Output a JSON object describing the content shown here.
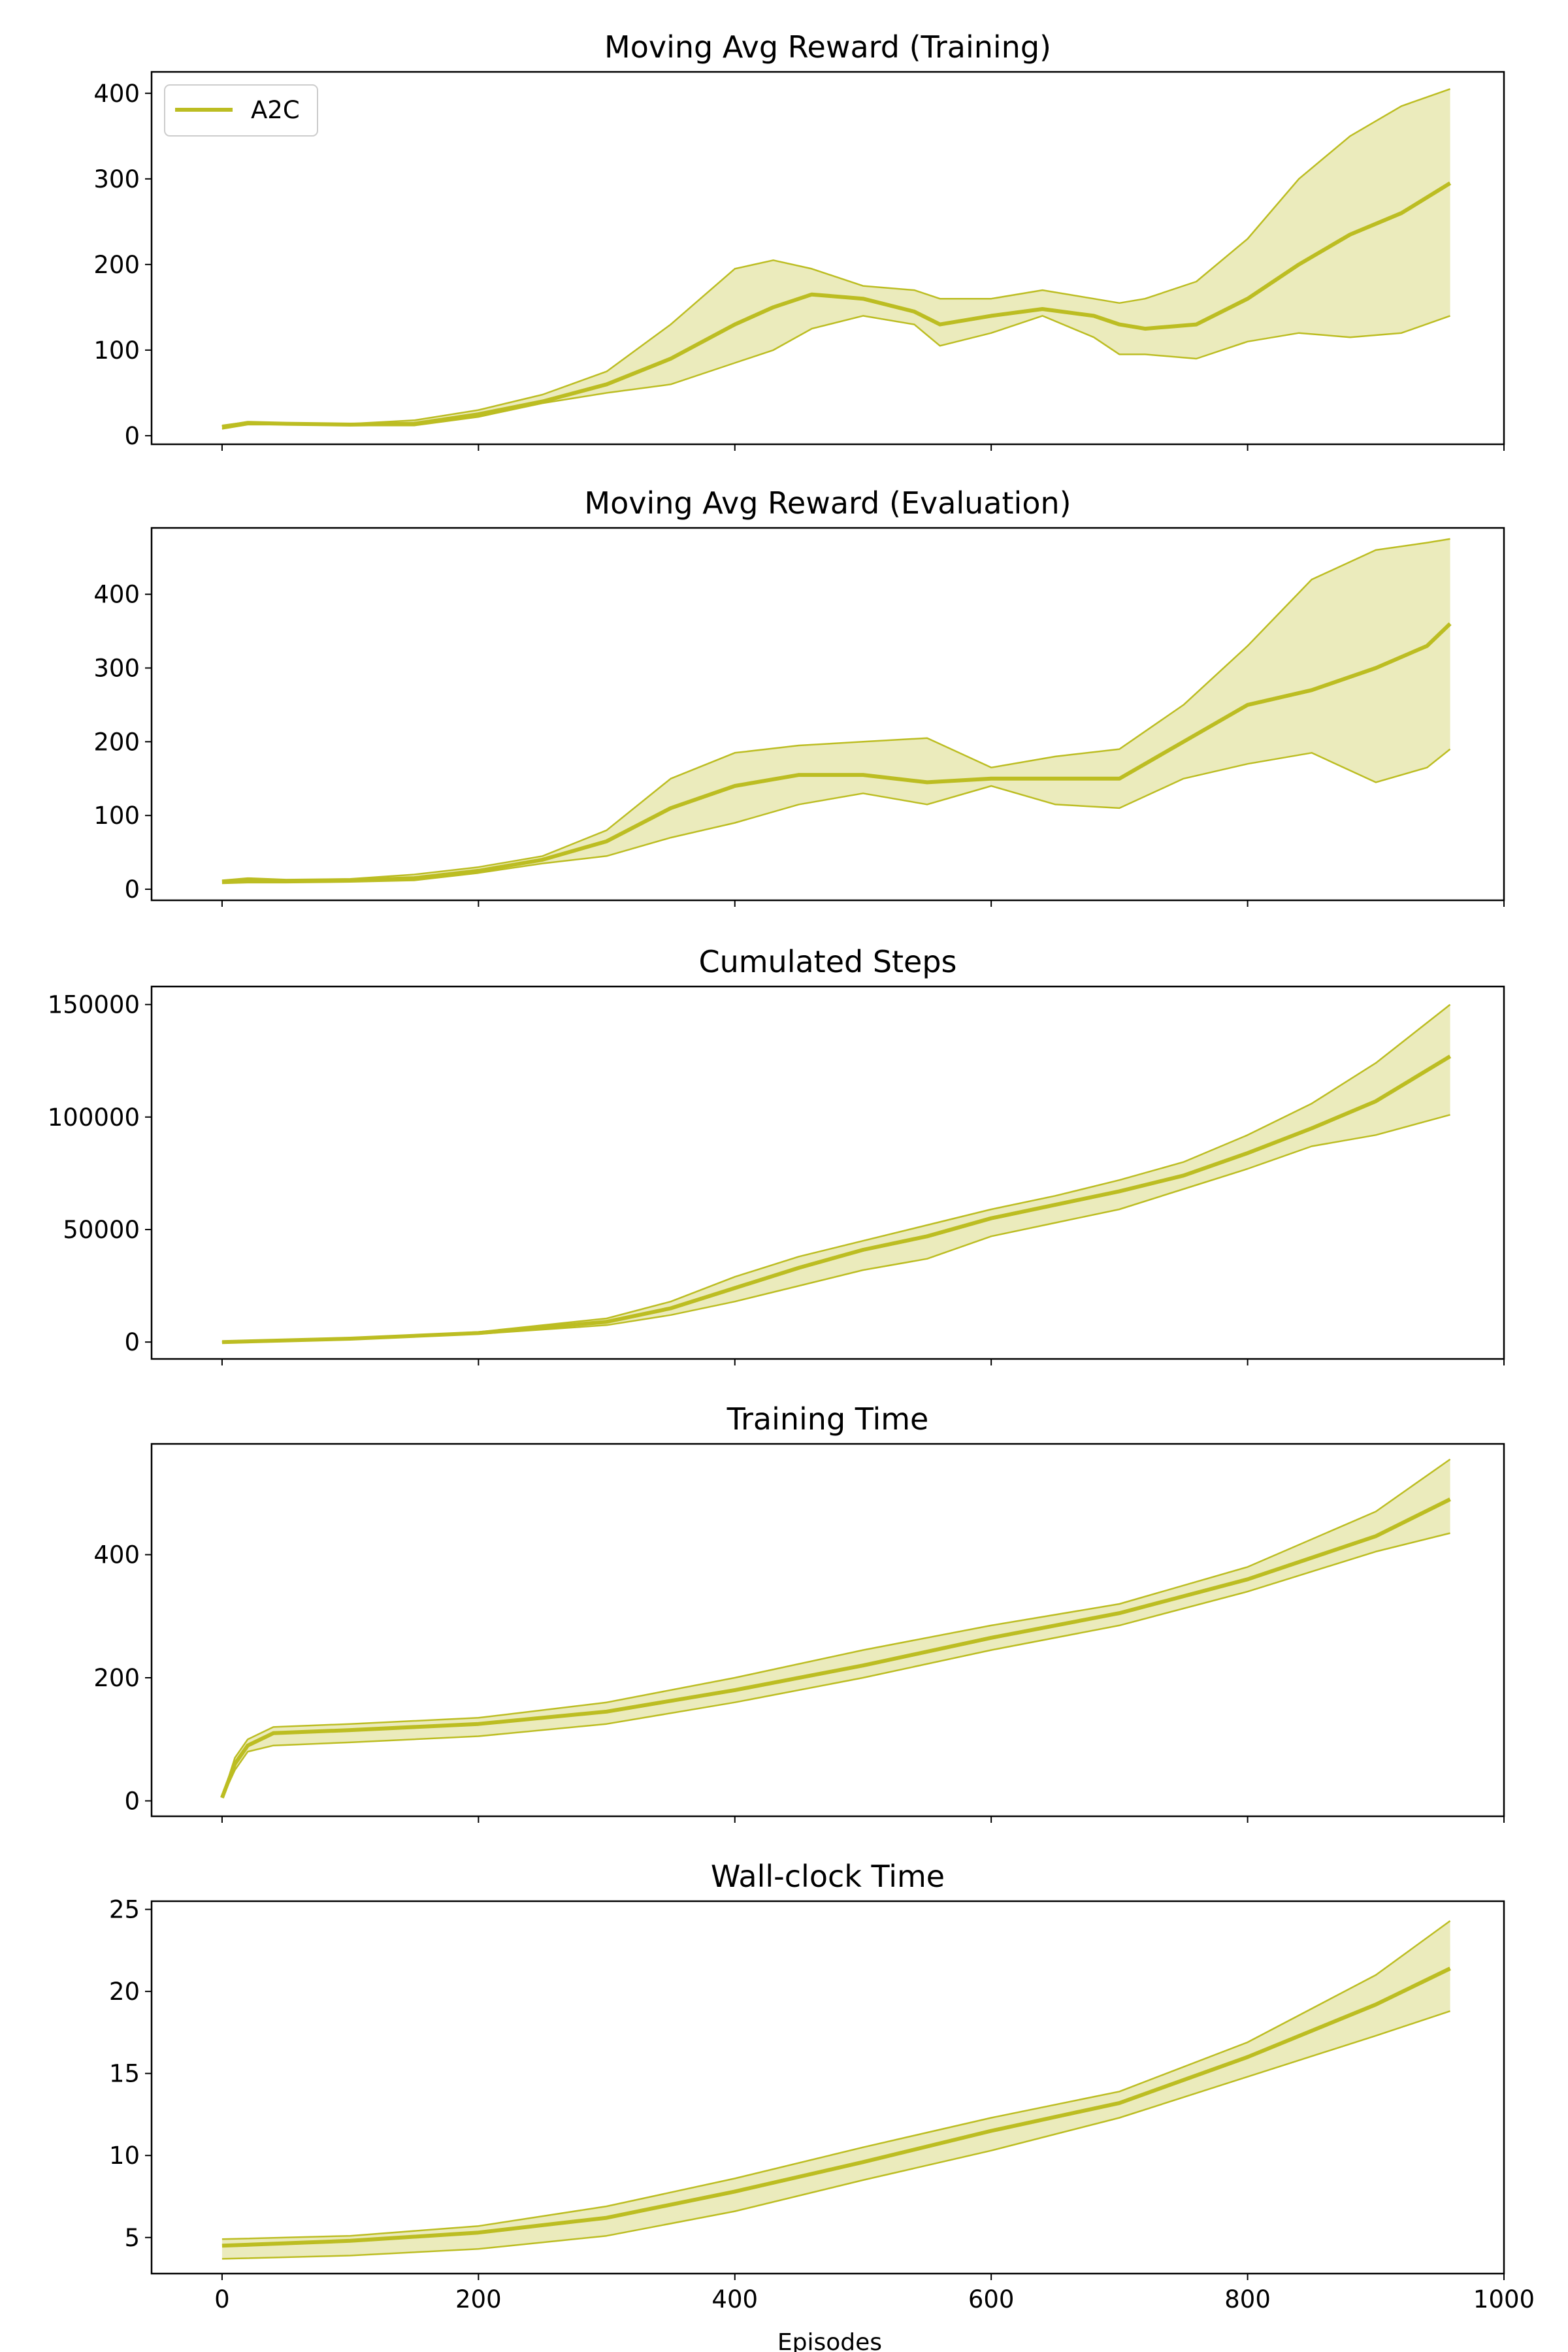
{
  "colors": {
    "series": "#bcbd22",
    "band": "#bcbd22",
    "axis": "#000000",
    "background": "#ffffff"
  },
  "figure": {
    "xlabel": "Episodes"
  },
  "legend": {
    "label": "A2C",
    "placement": "top-left"
  },
  "chart_data": [
    {
      "type": "line",
      "title": "Moving Avg Reward (Training)",
      "xlabel": "",
      "ylabel": "",
      "xlim": [
        -55,
        1000
      ],
      "ylim": [
        -10,
        425
      ],
      "xticks": [
        "0",
        "200",
        "400",
        "600",
        "800",
        "1000"
      ],
      "yticks": [
        0,
        100,
        200,
        300,
        400
      ],
      "ytick_labels": [
        "0",
        "100",
        "200",
        "300",
        "400"
      ],
      "grid": false,
      "series": [
        {
          "name": "A2C",
          "x": [
            0,
            20,
            50,
            100,
            150,
            200,
            250,
            300,
            350,
            400,
            430,
            460,
            500,
            540,
            560,
            600,
            640,
            680,
            700,
            720,
            760,
            800,
            840,
            880,
            920,
            958
          ],
          "mean": [
            10,
            15,
            14,
            13,
            14,
            25,
            40,
            60,
            90,
            130,
            150,
            165,
            160,
            145,
            130,
            140,
            148,
            140,
            130,
            125,
            130,
            160,
            200,
            235,
            260,
            295
          ],
          "upper": [
            12,
            16,
            15,
            14,
            18,
            30,
            48,
            75,
            130,
            195,
            205,
            195,
            175,
            170,
            160,
            160,
            170,
            160,
            155,
            160,
            180,
            230,
            300,
            350,
            385,
            405
          ],
          "lower": [
            8,
            13,
            13,
            12,
            12,
            22,
            38,
            50,
            60,
            85,
            100,
            125,
            140,
            130,
            105,
            120,
            140,
            115,
            95,
            95,
            90,
            110,
            120,
            115,
            120,
            140
          ]
        }
      ]
    },
    {
      "type": "line",
      "title": "Moving Avg Reward (Evaluation)",
      "xlabel": "",
      "ylabel": "",
      "xlim": [
        -55,
        1000
      ],
      "ylim": [
        -15,
        490
      ],
      "xticks": [
        "0",
        "200",
        "400",
        "600",
        "800",
        "1000"
      ],
      "yticks": [
        0,
        100,
        200,
        300,
        400
      ],
      "ytick_labels": [
        "0",
        "100",
        "200",
        "300",
        "400"
      ],
      "grid": false,
      "series": [
        {
          "name": "A2C",
          "x": [
            0,
            20,
            50,
            100,
            150,
            200,
            250,
            300,
            350,
            400,
            450,
            500,
            550,
            600,
            650,
            700,
            750,
            800,
            850,
            900,
            940,
            958
          ],
          "mean": [
            10,
            12,
            11,
            12,
            15,
            25,
            40,
            65,
            110,
            140,
            155,
            155,
            145,
            150,
            150,
            150,
            200,
            250,
            270,
            300,
            330,
            360
          ],
          "upper": [
            12,
            15,
            13,
            14,
            20,
            30,
            45,
            80,
            150,
            185,
            195,
            200,
            205,
            165,
            180,
            190,
            250,
            330,
            420,
            460,
            470,
            475
          ],
          "lower": [
            8,
            9,
            9,
            10,
            12,
            22,
            35,
            45,
            70,
            90,
            115,
            130,
            115,
            140,
            115,
            110,
            150,
            170,
            185,
            145,
            165,
            190
          ]
        }
      ]
    },
    {
      "type": "line",
      "title": "Cumulated Steps",
      "xlabel": "",
      "ylabel": "",
      "xlim": [
        -55,
        1000
      ],
      "ylim": [
        -7500,
        158000
      ],
      "xticks": [
        "0",
        "200",
        "400",
        "600",
        "800",
        "1000"
      ],
      "yticks": [
        0,
        50000,
        100000,
        150000
      ],
      "ytick_labels": [
        "0",
        "50000",
        "100000",
        "150000"
      ],
      "grid": false,
      "series": [
        {
          "name": "A2C",
          "x": [
            0,
            100,
            200,
            300,
            350,
            400,
            450,
            500,
            550,
            600,
            650,
            700,
            750,
            800,
            850,
            900,
            958
          ],
          "mean": [
            0,
            1500,
            4000,
            9000,
            15000,
            24000,
            33000,
            41000,
            47000,
            55000,
            61000,
            67000,
            74000,
            84000,
            95000,
            107000,
            127000
          ],
          "upper": [
            0,
            1600,
            4500,
            10500,
            18000,
            29000,
            38000,
            45000,
            52000,
            59000,
            65000,
            72000,
            80000,
            92000,
            106000,
            124000,
            150000
          ],
          "lower": [
            0,
            1400,
            3600,
            7500,
            12000,
            18000,
            25000,
            32000,
            37000,
            47000,
            53000,
            59000,
            68000,
            77000,
            87000,
            92000,
            101000
          ]
        }
      ]
    },
    {
      "type": "line",
      "title": "Training Time",
      "xlabel": "",
      "ylabel": "",
      "xlim": [
        -55,
        1000
      ],
      "ylim": [
        -25,
        580
      ],
      "xticks": [
        "0",
        "200",
        "400",
        "600",
        "800",
        "1000"
      ],
      "yticks": [
        0,
        200,
        400
      ],
      "ytick_labels": [
        "0",
        "200",
        "400"
      ],
      "grid": false,
      "series": [
        {
          "name": "A2C",
          "x": [
            0,
            10,
            20,
            40,
            100,
            200,
            300,
            400,
            500,
            600,
            700,
            800,
            900,
            958
          ],
          "mean": [
            5,
            60,
            90,
            110,
            115,
            125,
            145,
            180,
            220,
            265,
            305,
            360,
            430,
            490
          ],
          "upper": [
            5,
            70,
            100,
            120,
            125,
            135,
            160,
            200,
            245,
            285,
            320,
            380,
            470,
            555
          ],
          "lower": [
            5,
            50,
            80,
            90,
            95,
            105,
            125,
            160,
            200,
            245,
            285,
            340,
            405,
            435
          ]
        }
      ]
    },
    {
      "type": "line",
      "title": "Wall-clock Time",
      "xlabel": "Episodes",
      "ylabel": "",
      "xlim": [
        -55,
        1000
      ],
      "ylim": [
        2.8,
        25.5
      ],
      "xticks": [
        "0",
        "200",
        "400",
        "600",
        "800",
        "1000"
      ],
      "yticks": [
        5,
        10,
        15,
        20,
        25
      ],
      "ytick_labels": [
        "5",
        "10",
        "15",
        "20",
        "25"
      ],
      "grid": false,
      "series": [
        {
          "name": "A2C",
          "x": [
            0,
            100,
            200,
            300,
            400,
            500,
            600,
            700,
            800,
            900,
            958
          ],
          "mean": [
            4.5,
            4.8,
            5.3,
            6.2,
            7.8,
            9.6,
            11.5,
            13.2,
            16.0,
            19.2,
            21.4
          ],
          "upper": [
            4.9,
            5.1,
            5.7,
            6.9,
            8.6,
            10.5,
            12.3,
            13.9,
            16.9,
            21.0,
            24.3
          ],
          "lower": [
            3.7,
            3.9,
            4.3,
            5.1,
            6.6,
            8.5,
            10.3,
            12.3,
            14.8,
            17.3,
            18.8
          ]
        }
      ]
    }
  ]
}
